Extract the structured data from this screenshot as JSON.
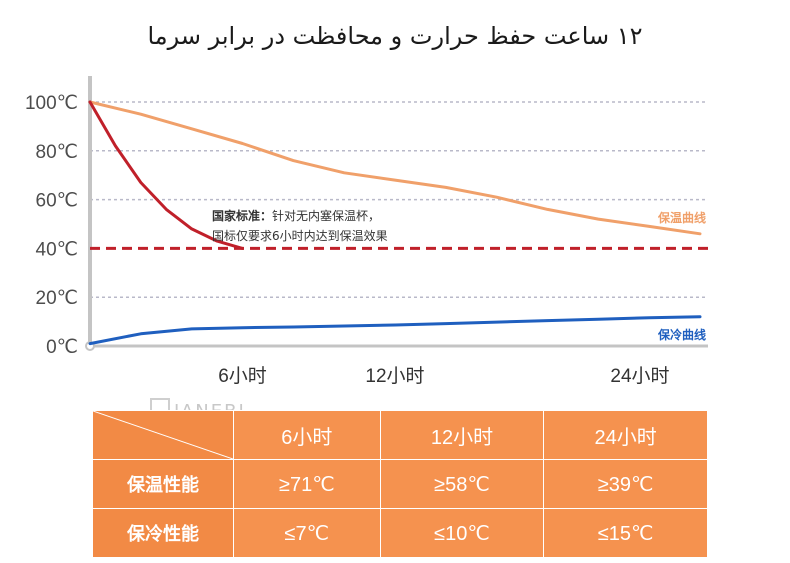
{
  "title": "۱۲ ساعت حفظ حرارت و محافظت در برابر سرما",
  "chart_data": {
    "type": "line",
    "ylim": [
      0,
      100
    ],
    "xlim": [
      0,
      24
    ],
    "yticks": [
      "100℃",
      "80℃",
      "60℃",
      "40℃",
      "20℃",
      "0℃"
    ],
    "xticks": [
      {
        "x": 6,
        "label": "6小时"
      },
      {
        "x": 12,
        "label": "12小时"
      },
      {
        "x": 24,
        "label": "24小时"
      }
    ],
    "grid": true,
    "series": [
      {
        "name": "保温曲线",
        "color": "#f0a06a",
        "x": [
          0,
          2,
          4,
          6,
          8,
          10,
          12,
          14,
          16,
          18,
          20,
          22,
          24
        ],
        "y": [
          100,
          95,
          89,
          83,
          76,
          71,
          68,
          65,
          61,
          56,
          52,
          49,
          46
        ]
      },
      {
        "name": "保冷曲线",
        "color": "#1f5fbf",
        "x": [
          0,
          2,
          4,
          6,
          8,
          10,
          12,
          14,
          16,
          18,
          20,
          22,
          24
        ],
        "y": [
          1,
          5,
          7,
          7.5,
          7.8,
          8.2,
          8.6,
          9.2,
          9.8,
          10.4,
          11,
          11.6,
          12
        ]
      },
      {
        "name": "",
        "color": "#c0202a",
        "x": [
          0,
          1,
          2,
          3,
          4,
          5,
          6
        ],
        "y": [
          100,
          82,
          67,
          56,
          48,
          43,
          40
        ]
      }
    ],
    "reference_line": {
      "y": 40,
      "color": "#c0202a",
      "style": "dashed"
    },
    "annotation": {
      "bold": "国家标准：",
      "line1": "针对无内塞保温杯，",
      "line2": "国标仅要求6小时内达到保温效果"
    }
  },
  "table": {
    "headers": [
      "6小时",
      "12小时",
      "24小时"
    ],
    "rows": [
      {
        "label": "保温性能",
        "values": [
          "≥71℃",
          "≥58℃",
          "≥39℃"
        ]
      },
      {
        "label": "保冷性能",
        "values": [
          "≤7℃",
          "≤10℃",
          "≤15℃"
        ]
      }
    ]
  },
  "watermark": "JANEBI"
}
